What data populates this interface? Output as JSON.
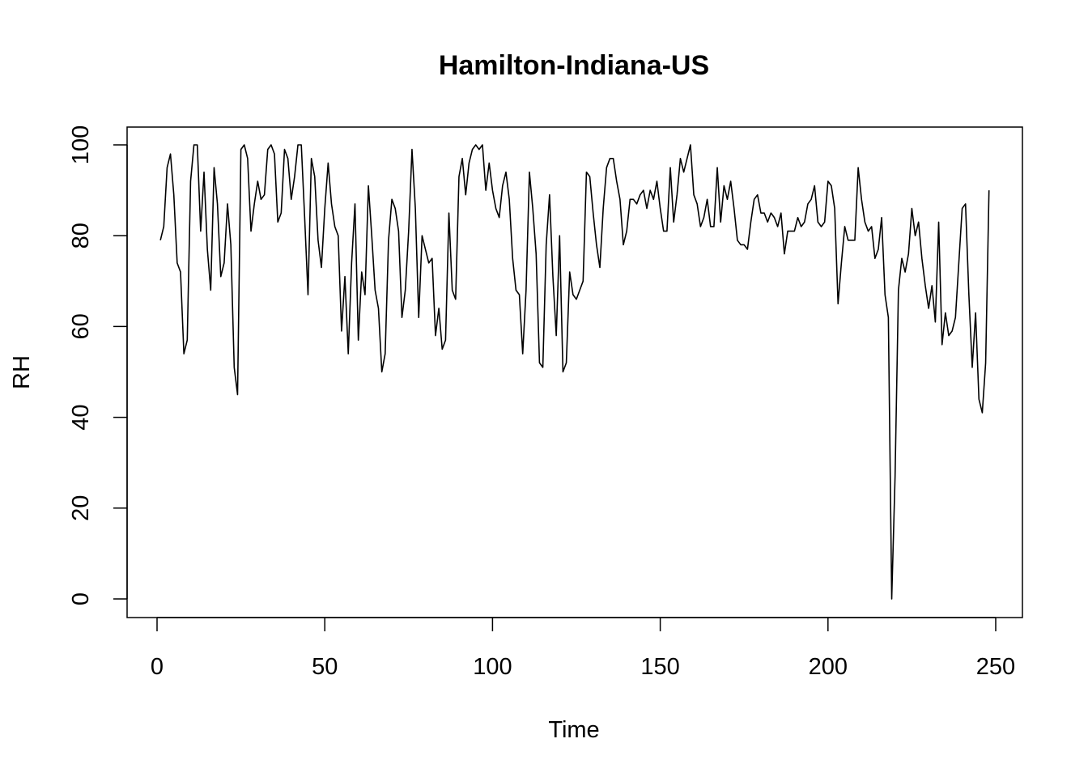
{
  "chart_data": {
    "type": "line",
    "title": "Hamilton-Indiana-US",
    "xlabel": "Time",
    "ylabel": "RH",
    "xlim": [
      0,
      250
    ],
    "ylim": [
      0,
      100
    ],
    "x_ticks": [
      0,
      50,
      100,
      150,
      200,
      250
    ],
    "y_ticks": [
      0,
      20,
      40,
      60,
      80,
      100
    ],
    "line_color": "#000000",
    "grid": false,
    "legend": "none",
    "x_start": 1,
    "values": [
      79,
      82,
      95,
      98,
      89,
      74,
      72,
      54,
      57,
      92,
      100,
      100,
      81,
      94,
      77,
      68,
      95,
      87,
      71,
      74,
      87,
      78,
      51,
      45,
      99,
      100,
      97,
      81,
      87,
      92,
      88,
      89,
      99,
      100,
      98,
      83,
      85,
      99,
      97,
      88,
      93,
      100,
      100,
      84,
      67,
      97,
      93,
      79,
      73,
      86,
      96,
      87,
      82,
      80,
      59,
      71,
      54,
      74,
      87,
      57,
      72,
      67,
      91,
      80,
      68,
      64,
      50,
      54,
      79,
      88,
      86,
      81,
      62,
      68,
      81,
      99,
      86,
      62,
      80,
      77,
      74,
      75,
      58,
      64,
      55,
      57,
      85,
      68,
      66,
      93,
      97,
      89,
      96,
      99,
      100,
      99,
      100,
      90,
      96,
      90,
      86,
      84,
      91,
      94,
      88,
      75,
      68,
      67,
      54,
      68,
      94,
      86,
      76,
      52,
      51,
      78,
      89,
      71,
      58,
      80,
      50,
      52,
      72,
      67,
      66,
      68,
      70,
      94,
      93,
      85,
      78,
      73,
      86,
      95,
      97,
      97,
      92,
      88,
      78,
      81,
      88,
      88,
      87,
      89,
      90,
      86,
      90,
      88,
      92,
      86,
      81,
      81,
      95,
      83,
      89,
      97,
      94,
      97,
      100,
      89,
      87,
      82,
      84,
      88,
      82,
      82,
      95,
      83,
      91,
      88,
      92,
      86,
      79,
      78,
      78,
      77,
      83,
      88,
      89,
      85,
      85,
      83,
      85,
      84,
      82,
      85,
      76,
      81,
      81,
      81,
      84,
      82,
      83,
      87,
      88,
      91,
      83,
      82,
      83,
      92,
      91,
      86,
      65,
      74,
      82,
      79,
      79,
      79,
      95,
      88,
      83,
      81,
      82,
      75,
      77,
      84,
      67,
      62,
      0,
      27,
      68,
      75,
      72,
      76,
      86,
      80,
      83,
      75,
      69,
      64,
      69,
      61,
      83,
      56,
      63,
      58,
      59,
      62,
      74,
      86,
      87,
      67,
      51,
      63,
      44,
      41,
      52,
      90
    ]
  }
}
